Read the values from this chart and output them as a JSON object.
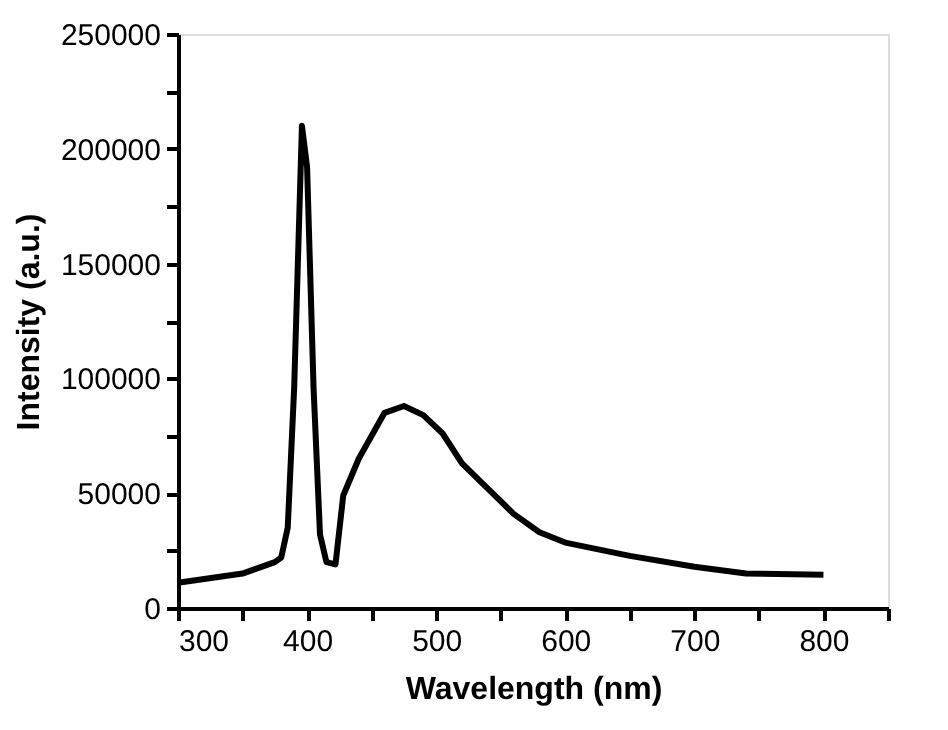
{
  "chart_data": {
    "type": "line",
    "xlabel": "Wavelength (nm)",
    "ylabel": "Intensity (a.u.)",
    "x": [
      300,
      350,
      375,
      380,
      385,
      390,
      396,
      400,
      405,
      410,
      415,
      422,
      428,
      440,
      460,
      475,
      490,
      505,
      520,
      540,
      560,
      580,
      600,
      650,
      700,
      740,
      800
    ],
    "series": [
      {
        "color": "#000000",
        "values": [
          11000,
          15000,
          20000,
          22000,
          35000,
          96000,
          210000,
          192000,
          96000,
          32000,
          20000,
          19000,
          49000,
          65000,
          85000,
          88000,
          84000,
          76000,
          63000,
          52000,
          41000,
          33000,
          28500,
          22700,
          18000,
          15000,
          14500
        ]
      }
    ],
    "xlim": [
      300,
      850
    ],
    "xticks": [
      300,
      {
        "value": 350,
        "label": null
      },
      400,
      {
        "value": 450,
        "label": null
      },
      500,
      {
        "value": 550,
        "label": null
      },
      600,
      {
        "value": 650,
        "label": null
      },
      700,
      {
        "value": 750,
        "label": null
      },
      800,
      {
        "value": 850,
        "label": null
      }
    ],
    "ylim": [
      0,
      250000
    ],
    "yticks": [
      0,
      {
        "value": 25000,
        "label": null
      },
      50000,
      {
        "value": 75000,
        "label": null
      },
      100000,
      {
        "value": 125000,
        "label": null
      },
      150000,
      {
        "value": 175000,
        "label": null
      },
      200000,
      {
        "value": 225000,
        "label": null
      },
      250000
    ],
    "grid": false,
    "legend": false,
    "marker": "none",
    "line_style": "solid"
  }
}
